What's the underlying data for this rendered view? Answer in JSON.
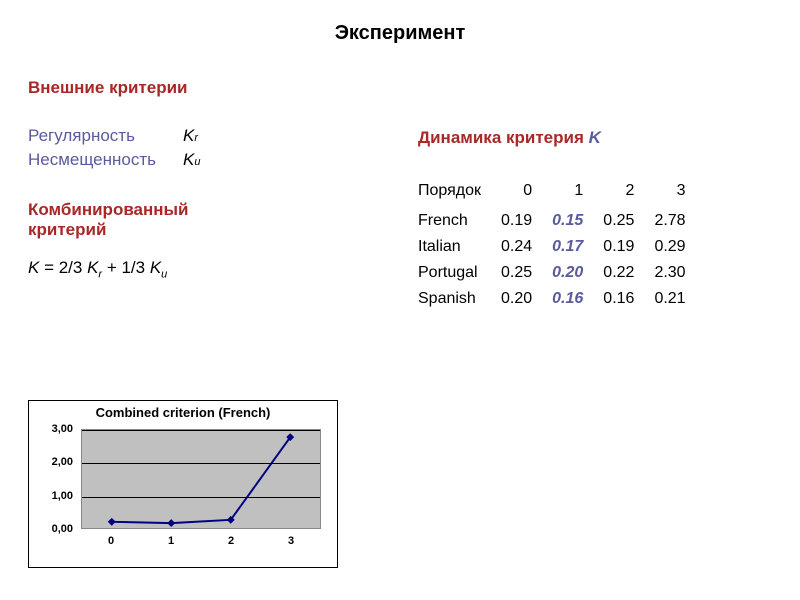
{
  "title": "Эксперимент",
  "left": {
    "section1_heading": "Внешние критерии",
    "crit1_label": "Регулярность",
    "crit1_sym": "K",
    "crit1_sub": "r",
    "crit2_label": "Несмещенность",
    "crit2_sym": "K",
    "crit2_sub": "u",
    "section2_heading_l1": "Комбинированный",
    "section2_heading_l2": "критерий",
    "formula_K": "K",
    "formula_eq": " = 2/3 ",
    "formula_Kr": "K",
    "formula_r": "r",
    "formula_plus": "  +  1/3 ",
    "formula_Ku": "K",
    "formula_u": "u"
  },
  "right": {
    "heading_red": "Динамика критерия ",
    "heading_K": "K",
    "table": {
      "header_label": "Порядок",
      "cols": [
        "0",
        "1",
        "2",
        "3"
      ],
      "rows": [
        {
          "label": "French",
          "vals": [
            "0.19",
            "0.15",
            "0.25",
            "2.78"
          ],
          "hl": 1
        },
        {
          "label": "Italian",
          "vals": [
            "0.24",
            "0.17",
            "0.19",
            "0.29"
          ],
          "hl": 1
        },
        {
          "label": "Portugal",
          "vals": [
            "0.25",
            "0.20",
            "0.22",
            "2.30"
          ],
          "hl": 1
        },
        {
          "label": "Spanish",
          "vals": [
            "0.20",
            "0.16",
            "0.16",
            "0.21"
          ],
          "hl": 1
        }
      ]
    }
  },
  "chart": {
    "title": "Combined criterion (French)",
    "type": "line",
    "x_categories": [
      "0",
      "1",
      "2",
      "3"
    ],
    "y_ticks": [
      "0,00",
      "1,00",
      "2,00",
      "3,00"
    ],
    "ylim": [
      0,
      3
    ],
    "values": [
      0.19,
      0.15,
      0.25,
      2.78
    ],
    "line_color": "#000080",
    "marker_shape": "diamond",
    "marker_size": 8,
    "line_width": 2,
    "background_color": "#c0c0c0",
    "grid_color": "#000000",
    "border_color": "#888888",
    "title_fontsize": 13,
    "tick_fontsize": 11
  }
}
